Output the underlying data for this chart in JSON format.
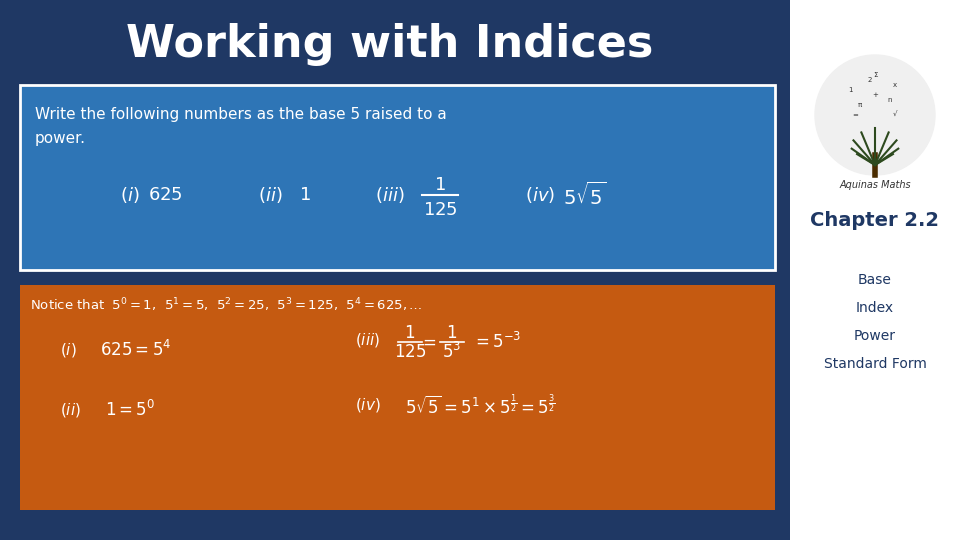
{
  "title": "Working with Indices",
  "title_color": "#FFFFFF",
  "title_fontsize": 32,
  "bg_color": "#1F3864",
  "blue_box_color": "#2E75B6",
  "orange_box_color": "#C55A11",
  "right_panel_color": "#FFFFFF",
  "chapter_label": "Chapter 2.2",
  "sidebar_items": [
    "Base",
    "Index",
    "Power",
    "Standard Form"
  ],
  "question_text_line1": "Write the following numbers as the base 5 raised to a",
  "question_text_line2": "power.",
  "aquinas_text": "Aquinas Maths"
}
